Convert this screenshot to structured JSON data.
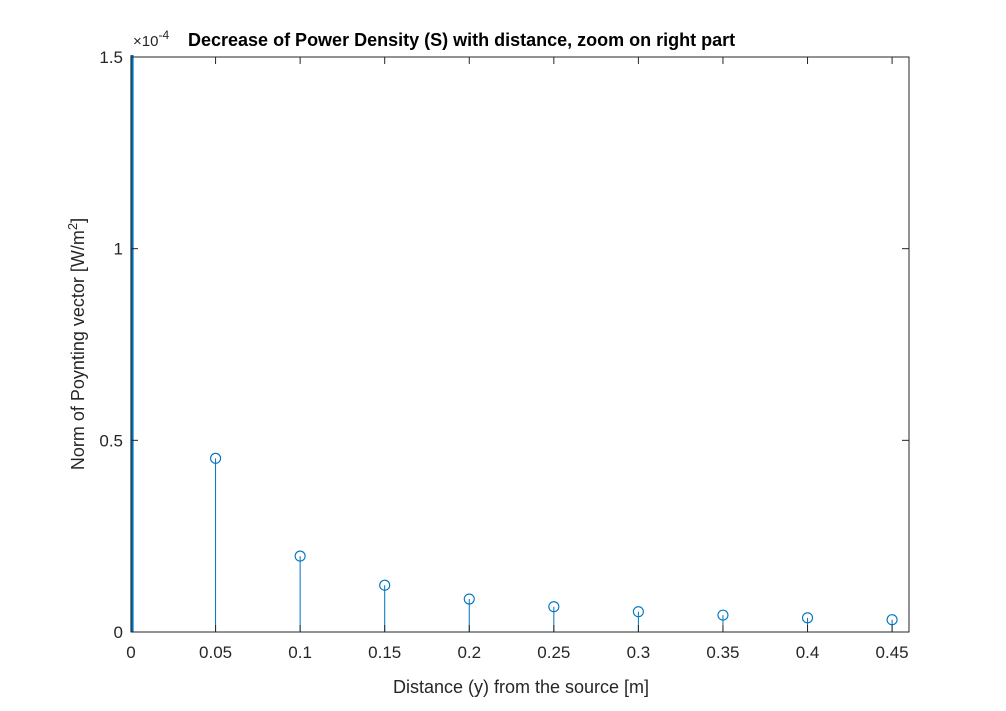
{
  "chart_data": {
    "type": "stem",
    "title": "Decrease of Power Density (S) with distance, zoom on right part",
    "xlabel": "Distance (y) from the source [m]",
    "ylabel_main": "Norm of Poynting vector [W/m",
    "ylabel_sup": "2",
    "ylabel_end": "]",
    "y_exponent_prefix": "×10",
    "y_exponent_power": "-4",
    "xlim": [
      0,
      0.46
    ],
    "ylim": [
      0,
      1.5
    ],
    "xticks": [
      0,
      0.05,
      0.1,
      0.15,
      0.2,
      0.25,
      0.3,
      0.35,
      0.4,
      0.45
    ],
    "xtick_labels": [
      "0",
      "0.05",
      "0.1",
      "0.15",
      "0.2",
      "0.25",
      "0.3",
      "0.35",
      "0.4",
      "0.45"
    ],
    "yticks": [
      0,
      0.5,
      1,
      1.5
    ],
    "ytick_labels": [
      "0",
      "0.5",
      "1",
      "1.5"
    ],
    "grid": false,
    "marker": "circle",
    "x": [
      0.05,
      0.1,
      0.15,
      0.2,
      0.25,
      0.3,
      0.35,
      0.4,
      0.45
    ],
    "y": [
      0.453,
      0.198,
      0.122,
      0.086,
      0.066,
      0.053,
      0.044,
      0.037,
      0.032
    ],
    "color": "#0072BD",
    "axis_color": "#262626"
  }
}
